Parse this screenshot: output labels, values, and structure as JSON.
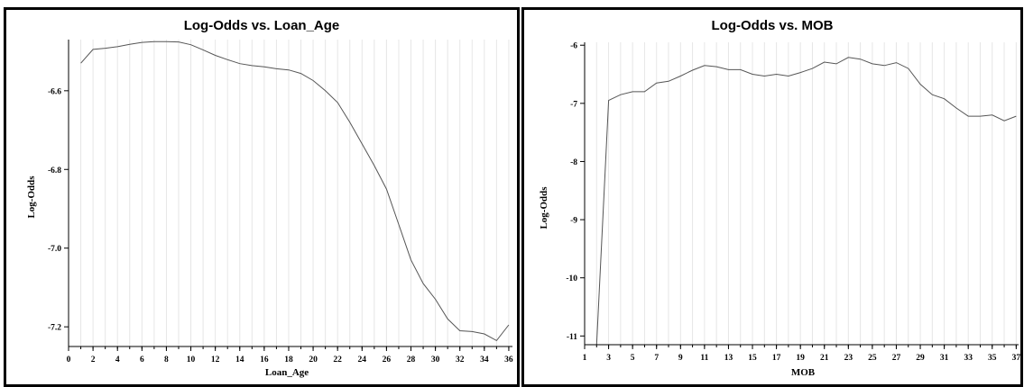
{
  "chart_data": [
    {
      "type": "line",
      "title": "Log-Odds vs. Loan_Age",
      "xlabel": "Loan_Age",
      "ylabel": "Log-Odds",
      "xlim": [
        0,
        36.3
      ],
      "ylim": [
        -7.25,
        -6.47
      ],
      "xticks": [
        0,
        2,
        4,
        6,
        8,
        10,
        12,
        14,
        16,
        18,
        20,
        22,
        24,
        26,
        28,
        30,
        32,
        34,
        36
      ],
      "yticks": [
        -6.6,
        -6.8,
        -7.0,
        -7.2
      ],
      "ytick_labels": [
        "-6.6",
        "-6.8",
        "-7.0",
        "-7.2"
      ],
      "grid": "vertical",
      "series": [
        {
          "x": [
            1,
            2,
            3,
            4,
            5,
            6,
            7,
            8,
            9,
            10,
            11,
            12,
            13,
            14,
            15,
            16,
            17,
            18,
            19,
            20,
            21,
            22,
            23,
            24,
            25,
            26,
            27,
            28,
            29,
            30,
            31,
            32,
            33,
            34,
            35,
            36
          ],
          "values": [
            -6.53,
            -6.495,
            -6.492,
            -6.488,
            -6.482,
            -6.477,
            -6.475,
            -6.475,
            -6.476,
            -6.483,
            -6.496,
            -6.51,
            -6.521,
            -6.531,
            -6.536,
            -6.539,
            -6.544,
            -6.547,
            -6.556,
            -6.574,
            -6.6,
            -6.63,
            -6.68,
            -6.735,
            -6.79,
            -6.85,
            -6.94,
            -7.03,
            -7.09,
            -7.13,
            -7.18,
            -7.21,
            -7.212,
            -7.218,
            -7.235,
            -7.195
          ]
        }
      ]
    },
    {
      "type": "line",
      "title": "Log-Odds vs. MOB",
      "xlabel": "MOB",
      "ylabel": "Log-Odds",
      "xlim": [
        1,
        37.2
      ],
      "ylim": [
        -11.15,
        -5.95
      ],
      "xticks": [
        1,
        3,
        5,
        7,
        9,
        11,
        13,
        15,
        17,
        19,
        21,
        23,
        25,
        27,
        29,
        31,
        33,
        35,
        37
      ],
      "yticks": [
        -6,
        -7,
        -8,
        -9,
        -10,
        -11
      ],
      "ytick_labels": [
        "-6",
        "-7",
        "-8",
        "-9",
        "-10",
        "-11"
      ],
      "grid": "vertical",
      "series": [
        {
          "x": [
            2,
            3,
            4,
            5,
            6,
            7,
            8,
            9,
            10,
            11,
            12,
            13,
            14,
            15,
            16,
            17,
            18,
            19,
            20,
            21,
            22,
            23,
            24,
            25,
            26,
            27,
            28,
            29,
            30,
            31,
            32,
            33,
            34,
            35,
            36,
            37
          ],
          "values": [
            -11.15,
            -6.95,
            -6.85,
            -6.8,
            -6.8,
            -6.65,
            -6.62,
            -6.53,
            -6.43,
            -6.35,
            -6.37,
            -6.42,
            -6.42,
            -6.5,
            -6.53,
            -6.5,
            -6.53,
            -6.47,
            -6.4,
            -6.29,
            -6.32,
            -6.21,
            -6.24,
            -6.32,
            -6.35,
            -6.3,
            -6.4,
            -6.67,
            -6.85,
            -6.92,
            -7.08,
            -7.22,
            -7.22,
            -7.2,
            -7.3,
            -7.22
          ]
        }
      ]
    }
  ]
}
